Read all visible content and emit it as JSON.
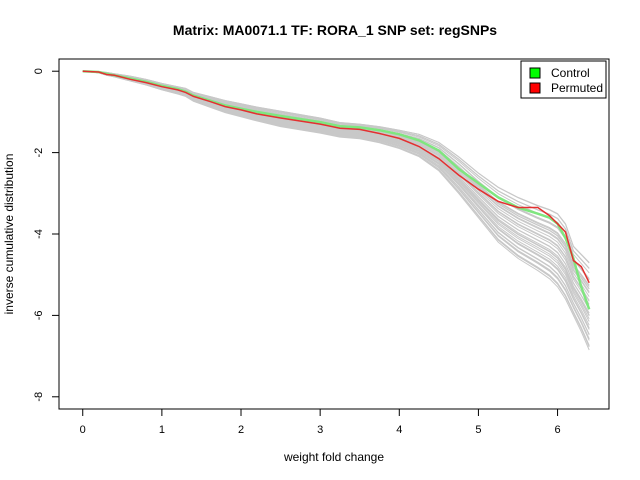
{
  "chart_data": {
    "type": "line",
    "title": "Matrix: MA0071.1 TF: RORA_1 SNP set: regSNPs",
    "xlabel": "weight fold change",
    "ylabel": "inverse cumulative distribution",
    "xlim": [
      -0.3,
      6.65
    ],
    "ylim": [
      -8.3,
      0.3
    ],
    "x_ticks": [
      0,
      1,
      2,
      3,
      4,
      5,
      6
    ],
    "y_ticks": [
      0,
      -2,
      -4,
      -6,
      -8
    ],
    "grid": false,
    "legend_position": "top-right",
    "legend": [
      {
        "label": "Control",
        "color": "#00ff00"
      },
      {
        "label": "Permuted",
        "color": "#ff0000"
      }
    ],
    "x": [
      0,
      0.2,
      0.3,
      0.4,
      0.6,
      0.8,
      1.0,
      1.2,
      1.3,
      1.4,
      1.6,
      1.8,
      2.0,
      2.2,
      2.5,
      3.0,
      3.25,
      3.5,
      3.75,
      4.0,
      4.25,
      4.5,
      4.75,
      5.0,
      5.25,
      5.5,
      5.75,
      5.9,
      6.0,
      6.1,
      6.2,
      6.3,
      6.4
    ],
    "series": [
      {
        "name": "Control",
        "color": "#7fe67f",
        "values": [
          0,
          -0.02,
          -0.06,
          -0.1,
          -0.18,
          -0.26,
          -0.36,
          -0.44,
          -0.5,
          -0.6,
          -0.72,
          -0.84,
          -0.92,
          -1.0,
          -1.1,
          -1.25,
          -1.35,
          -1.38,
          -1.45,
          -1.55,
          -1.7,
          -1.95,
          -2.4,
          -2.75,
          -3.1,
          -3.35,
          -3.5,
          -3.6,
          -3.75,
          -4.1,
          -4.6,
          -5.3,
          -5.85
        ]
      },
      {
        "name": "Permuted",
        "color": "#e33030",
        "values": [
          0,
          -0.02,
          -0.08,
          -0.1,
          -0.2,
          -0.28,
          -0.38,
          -0.46,
          -0.52,
          -0.62,
          -0.74,
          -0.87,
          -0.95,
          -1.05,
          -1.15,
          -1.3,
          -1.4,
          -1.43,
          -1.53,
          -1.65,
          -1.85,
          -2.15,
          -2.55,
          -2.9,
          -3.2,
          -3.35,
          -3.35,
          -3.55,
          -3.75,
          -3.95,
          -4.65,
          -4.8,
          -5.2
        ]
      }
    ],
    "background_band": {
      "color": "#c8c8c8",
      "upper": [
        0,
        -0.01,
        -0.03,
        -0.06,
        -0.12,
        -0.2,
        -0.3,
        -0.38,
        -0.42,
        -0.52,
        -0.62,
        -0.72,
        -0.8,
        -0.88,
        -0.98,
        -1.15,
        -1.26,
        -1.3,
        -1.36,
        -1.45,
        -1.55,
        -1.75,
        -2.1,
        -2.5,
        -2.85,
        -3.1,
        -3.3,
        -3.4,
        -3.5,
        -3.75,
        -4.3,
        -4.5,
        -4.7
      ],
      "lower": [
        0,
        -0.04,
        -0.1,
        -0.14,
        -0.24,
        -0.34,
        -0.46,
        -0.56,
        -0.62,
        -0.74,
        -0.88,
        -1.02,
        -1.12,
        -1.22,
        -1.36,
        -1.52,
        -1.62,
        -1.66,
        -1.76,
        -1.9,
        -2.1,
        -2.45,
        -3.0,
        -3.6,
        -4.2,
        -4.6,
        -4.9,
        -5.1,
        -5.3,
        -5.6,
        -6.0,
        -6.4,
        -6.85
      ]
    }
  }
}
